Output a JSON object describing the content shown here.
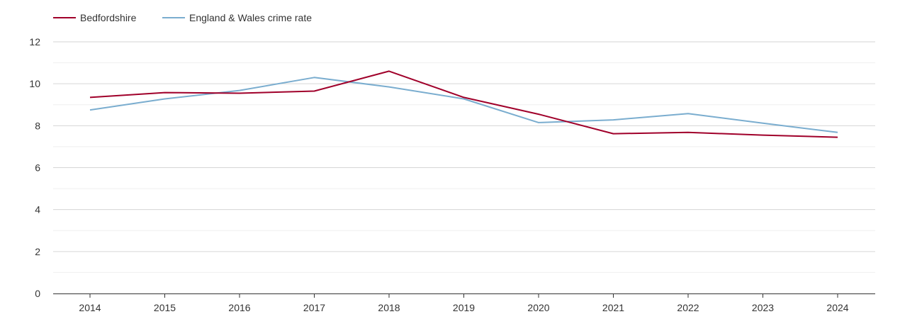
{
  "chart_data": {
    "type": "line",
    "title": "",
    "xlabel": "",
    "ylabel": "",
    "categories": [
      "2014",
      "2015",
      "2016",
      "2017",
      "2018",
      "2019",
      "2020",
      "2021",
      "2022",
      "2023",
      "2024"
    ],
    "ylim": [
      0,
      12
    ],
    "yticks": [
      "0",
      "2",
      "4",
      "6",
      "8",
      "10",
      "12"
    ],
    "grid": true,
    "legend_position": "top-left",
    "series": [
      {
        "name": "Bedfordshire",
        "color": "#a0002a",
        "values": [
          9.35,
          9.58,
          9.55,
          9.65,
          10.6,
          9.35,
          8.55,
          7.62,
          7.68,
          7.55,
          7.45
        ]
      },
      {
        "name": "England & Wales crime rate",
        "color": "#7aadcf",
        "values": [
          8.75,
          9.28,
          9.68,
          10.3,
          9.85,
          9.28,
          8.15,
          8.28,
          8.58,
          8.12,
          7.68
        ]
      }
    ]
  }
}
